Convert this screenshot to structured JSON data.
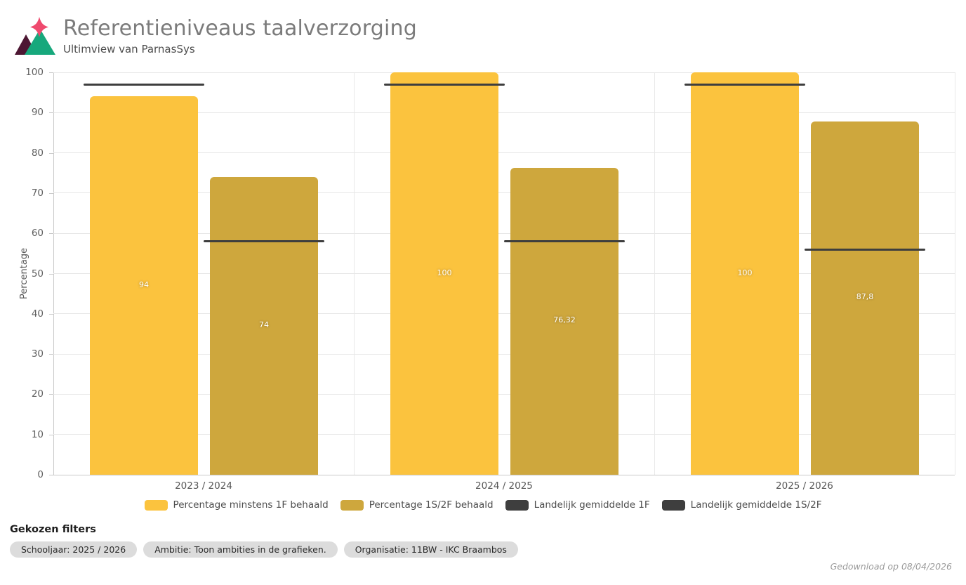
{
  "header": {
    "title": "Referentieniveaus taalverzorging",
    "subtitle": "Ultimview van ParnasSys"
  },
  "logo": {
    "star_color": "#EF4A6E",
    "left_triangle_color": "#4D1733",
    "right_triangle_color": "#17A87C"
  },
  "chart_data": {
    "type": "bar",
    "title": "Referentieniveaus taalverzorging",
    "categories": [
      "2023 / 2024",
      "2024 / 2025",
      "2025 / 2026"
    ],
    "series": [
      {
        "name": "Percentage minstens 1F behaald",
        "kind": "bar",
        "color": "#FBC33E",
        "values": [
          94,
          100,
          100
        ],
        "value_labels": [
          "94",
          "100",
          "100"
        ]
      },
      {
        "name": "Percentage 1S/2F behaald",
        "kind": "bar",
        "color": "#CEA73D",
        "values": [
          74,
          76.32,
          87.8
        ],
        "value_labels": [
          "74",
          "76,32",
          "87,8"
        ]
      },
      {
        "name": "Landelijk gemiddelde 1F",
        "kind": "line",
        "color": "#3E3E3E",
        "values": [
          97,
          97,
          97
        ]
      },
      {
        "name": "Landelijk gemiddelde 1S/2F",
        "kind": "line",
        "color": "#3E3E3E",
        "values": [
          58,
          58,
          56
        ]
      }
    ],
    "xlabel": "",
    "ylabel": "Percentage",
    "ylim": [
      0,
      100
    ],
    "yticks": [
      0,
      10,
      20,
      30,
      40,
      50,
      60,
      70,
      80,
      90,
      100
    ],
    "grid": true,
    "legend_position": "bottom"
  },
  "filters": {
    "title": "Gekozen filters",
    "chips": [
      "Schooljaar: 2025 / 2026",
      "Ambitie: Toon ambities in de grafieken.",
      "Organisatie: 11BW - IKC Braambos"
    ]
  },
  "footer": {
    "note": "Gedownload op 08/04/2026"
  }
}
